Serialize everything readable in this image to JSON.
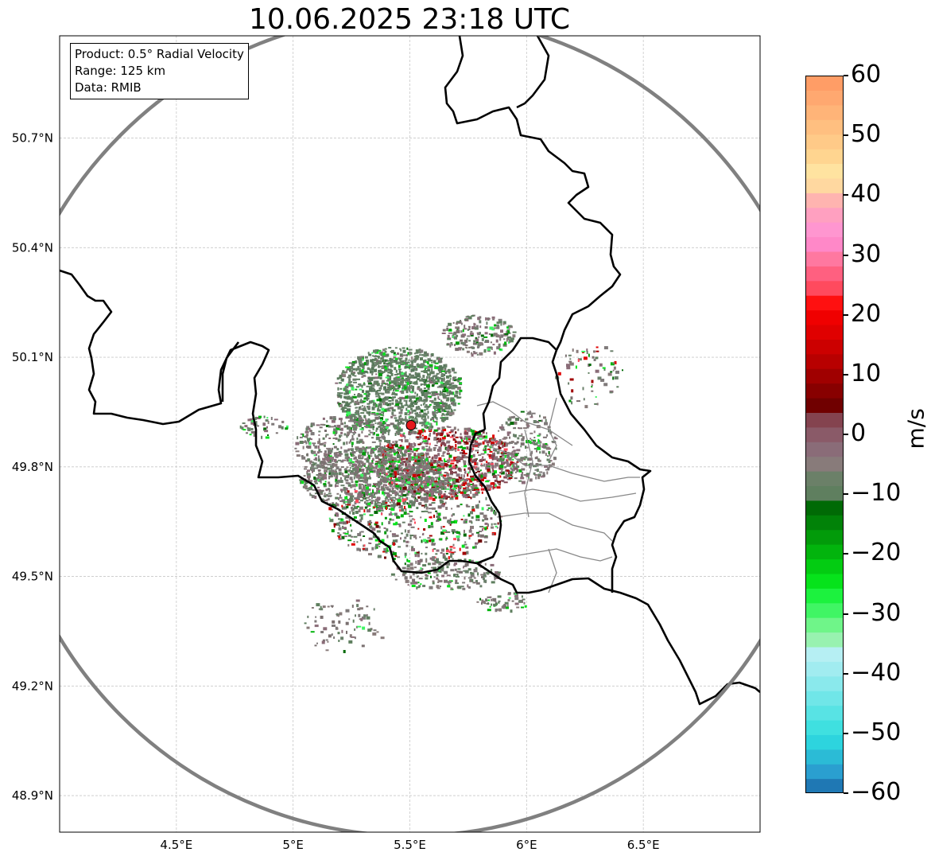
{
  "title": "10.06.2025 23:18 UTC",
  "info_box": {
    "product": "Product: 0.5° Radial Velocity",
    "range": "Range: 125 km",
    "data": "Data: RMIB"
  },
  "map": {
    "lon_range": [
      4.0,
      7.0
    ],
    "lat_range": [
      48.8,
      50.98
    ],
    "lon_ticks": [
      {
        "value": 4.5,
        "label": "4.5°E"
      },
      {
        "value": 5.0,
        "label": "5°E"
      },
      {
        "value": 5.5,
        "label": "5.5°E"
      },
      {
        "value": 6.0,
        "label": "6°E"
      },
      {
        "value": 6.5,
        "label": "6.5°E"
      }
    ],
    "lat_ticks": [
      {
        "value": 48.9,
        "label": "48.9°N"
      },
      {
        "value": 49.2,
        "label": "49.2°N"
      },
      {
        "value": 49.5,
        "label": "49.5°N"
      },
      {
        "value": 49.8,
        "label": "49.8°N"
      },
      {
        "value": 50.1,
        "label": "50.1°N"
      },
      {
        "value": 50.4,
        "label": "50.4°N"
      },
      {
        "value": 50.7,
        "label": "50.7°N"
      }
    ],
    "grid": true,
    "radar_site": {
      "lon": 5.505,
      "lat": 49.914
    },
    "range_ring_km": 125,
    "colors": {
      "border": "#000000",
      "admin_border": "#888888",
      "range_ring": "#808080",
      "radar_marker": "#e41a1c"
    }
  },
  "colorbar": {
    "unit": "m/s",
    "min": -60,
    "max": 60,
    "ticks": [
      {
        "value": 60,
        "label": "60"
      },
      {
        "value": 50,
        "label": "50"
      },
      {
        "value": 40,
        "label": "40"
      },
      {
        "value": 30,
        "label": "30"
      },
      {
        "value": 20,
        "label": "20"
      },
      {
        "value": 10,
        "label": "10"
      },
      {
        "value": 0,
        "label": "0"
      },
      {
        "value": -10,
        "label": "−10"
      },
      {
        "value": -20,
        "label": "−20"
      },
      {
        "value": -30,
        "label": "−30"
      },
      {
        "value": -40,
        "label": "−40"
      },
      {
        "value": -50,
        "label": "−50"
      },
      {
        "value": -60,
        "label": "−60"
      }
    ],
    "segments": [
      "#1f78b4",
      "#2a9fd0",
      "#2bbbd6",
      "#2dd4de",
      "#3fe0e0",
      "#58e3e4",
      "#70e6e8",
      "#8ae9ec",
      "#a1ecf0",
      "#b6eff3",
      "#98f2b0",
      "#6ff589",
      "#40f564",
      "#1cf23e",
      "#06e31b",
      "#03cc12",
      "#02b40d",
      "#029b0a",
      "#018208",
      "#006a05",
      "#5f7f5f",
      "#6b8068",
      "#887b7a",
      "#8a6c78",
      "#8a5a68",
      "#84434f",
      "#700000",
      "#880000",
      "#a00000",
      "#b80000",
      "#cc0000",
      "#e00000",
      "#f00000",
      "#ff1010",
      "#ff4a5e",
      "#ff6080",
      "#ff78a0",
      "#ff88c8",
      "#ff96d0",
      "#ffa0c0",
      "#ffb4b0",
      "#ffd8a0",
      "#ffe3a0",
      "#ffd590",
      "#ffca88",
      "#ffbf80",
      "#ffb478",
      "#ffa870",
      "#ff9d66"
    ]
  }
}
